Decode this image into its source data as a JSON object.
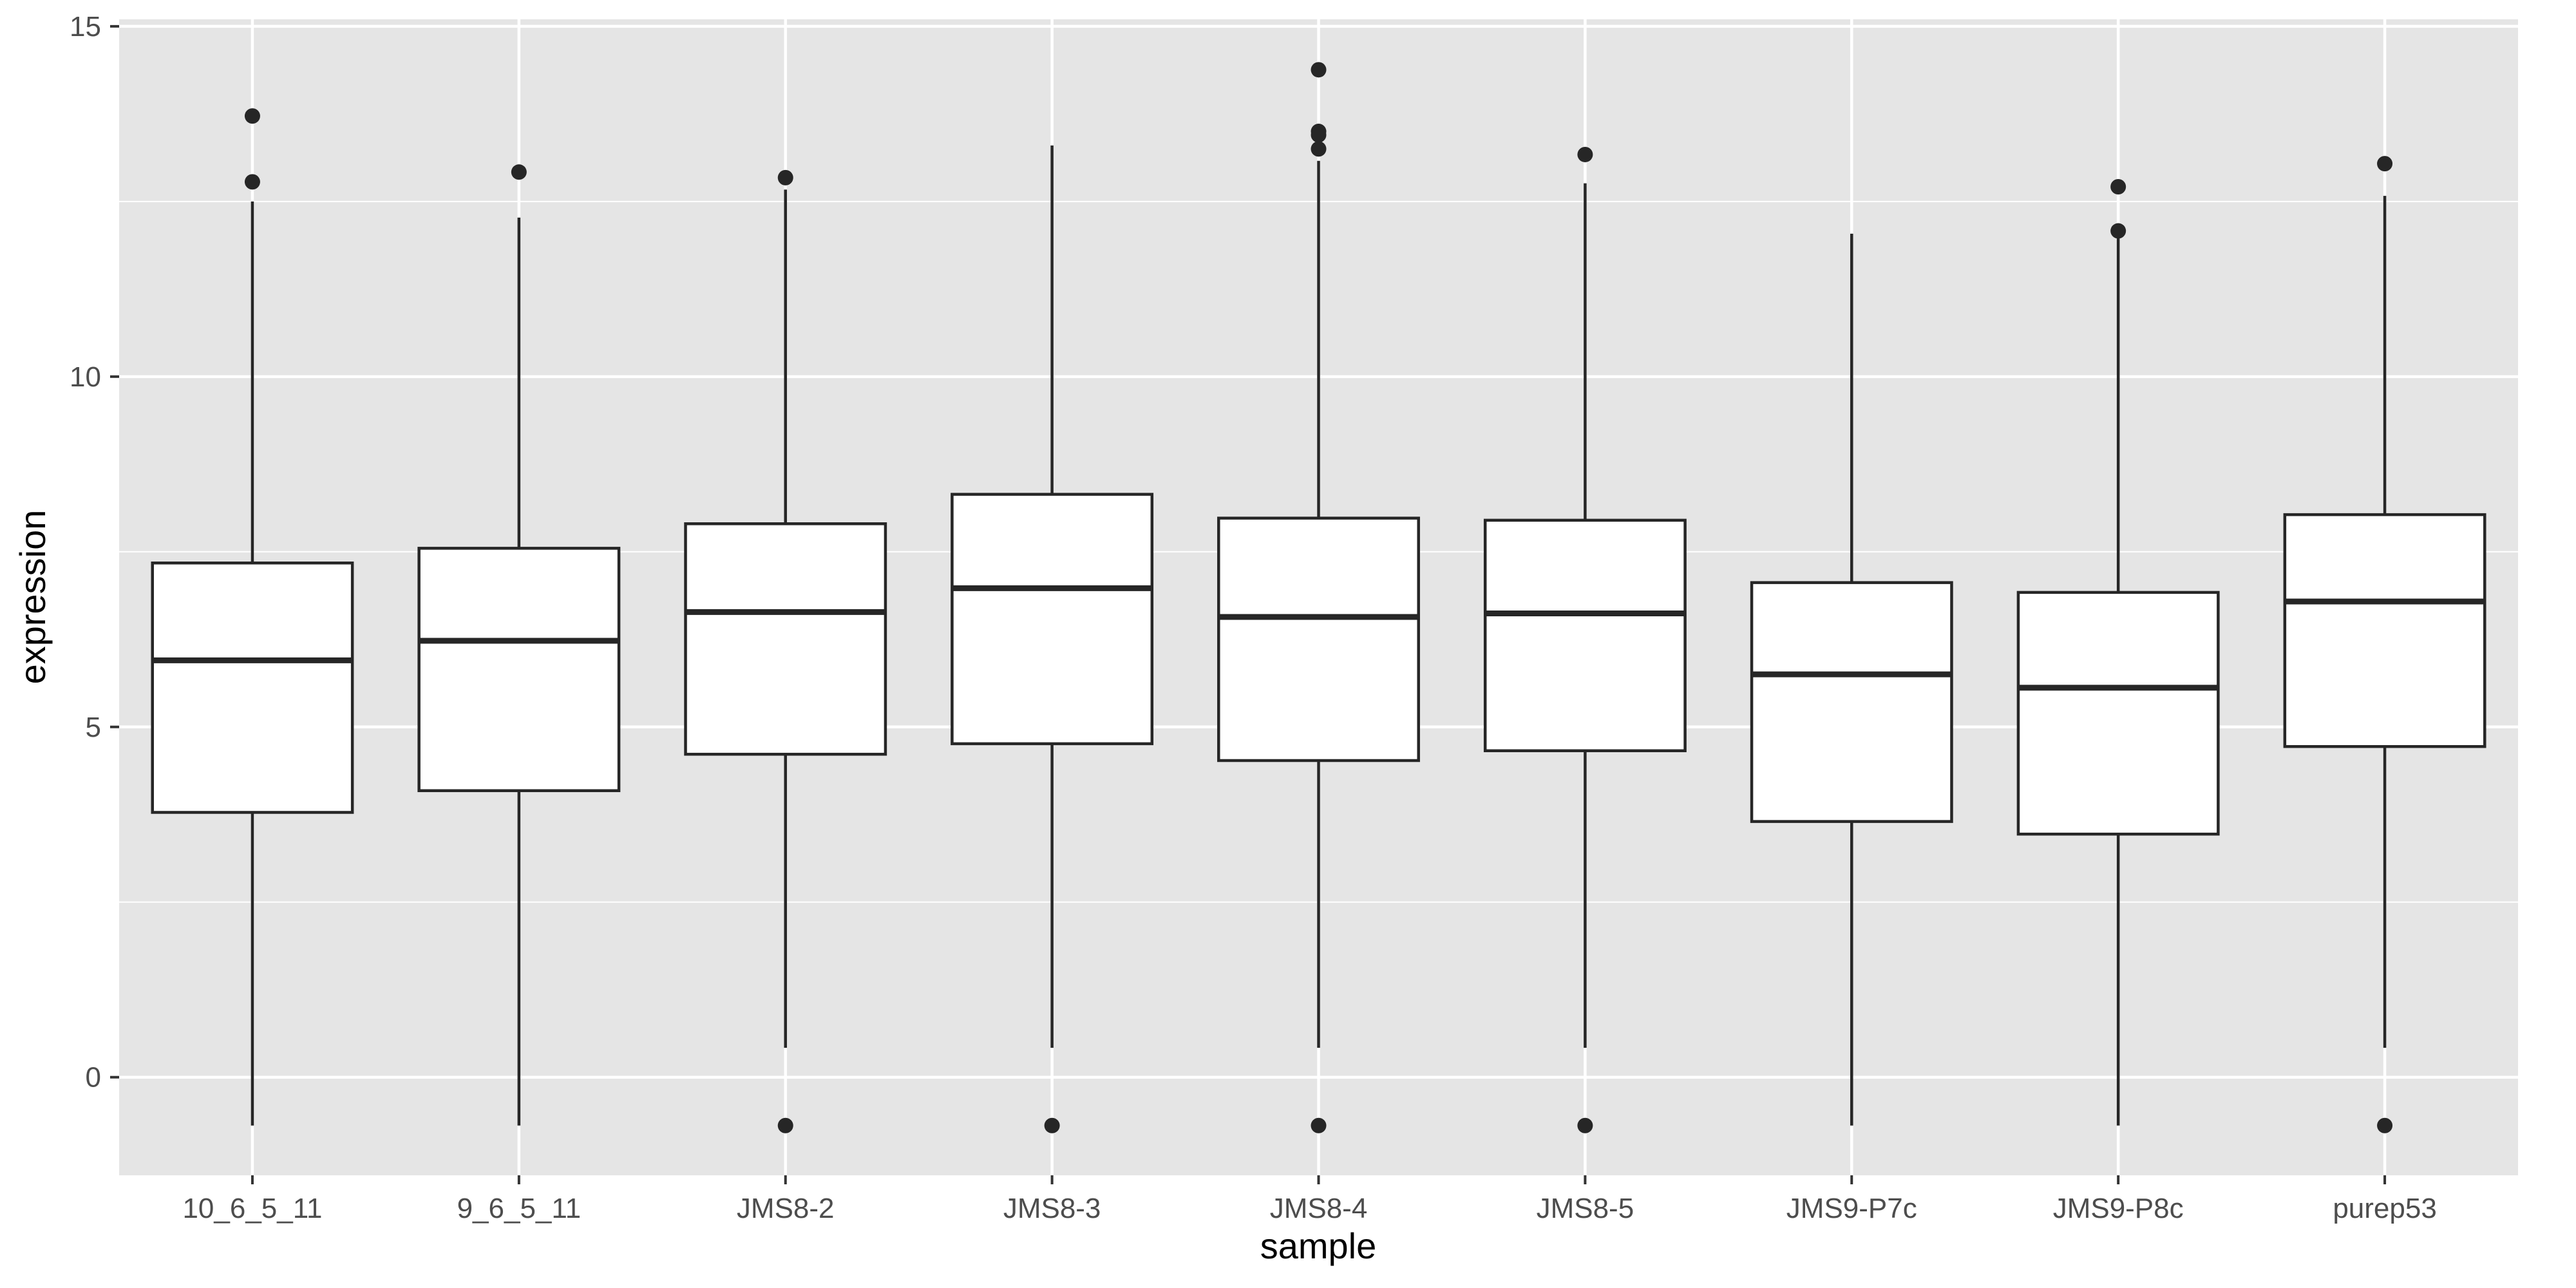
{
  "chart_data": {
    "type": "boxplot",
    "xlabel": "sample",
    "ylabel": "expression",
    "ylim": [
      -1.4,
      15.1
    ],
    "yticks": [
      0,
      5,
      10,
      15
    ],
    "y_minor_ticks": [
      2.5,
      7.5,
      12.5
    ],
    "grid": true,
    "colors": {
      "panel": "#e5e5e5",
      "grid": "#ffffff",
      "box_fill": "#ffffff",
      "stroke": "#262626",
      "tick_text": "#4d4d4d"
    },
    "categories": [
      "10_6_5_11",
      "9_6_5_11",
      "JMS8-2",
      "JMS8-3",
      "JMS8-4",
      "JMS8-5",
      "JMS9-P7c",
      "JMS9-P8c",
      "purep53"
    ],
    "boxes": [
      {
        "category": "10_6_5_11",
        "whisker_low": -0.69,
        "q1": 3.78,
        "median": 5.95,
        "q3": 7.34,
        "whisker_high": 12.5,
        "outliers": [
          13.72,
          12.78
        ]
      },
      {
        "category": "9_6_5_11",
        "whisker_low": -0.69,
        "q1": 4.09,
        "median": 6.23,
        "q3": 7.55,
        "whisker_high": 12.27,
        "outliers": [
          12.92
        ]
      },
      {
        "category": "JMS8-2",
        "whisker_low": 0.42,
        "q1": 4.61,
        "median": 6.64,
        "q3": 7.9,
        "whisker_high": 12.67,
        "outliers": [
          12.84,
          -0.69
        ]
      },
      {
        "category": "JMS8-3",
        "whisker_low": 0.42,
        "q1": 4.76,
        "median": 6.98,
        "q3": 8.32,
        "whisker_high": 13.3,
        "outliers": [
          -0.69
        ]
      },
      {
        "category": "JMS8-4",
        "whisker_low": 0.42,
        "q1": 4.52,
        "median": 6.57,
        "q3": 7.98,
        "whisker_high": 13.08,
        "outliers": [
          14.38,
          13.5,
          13.45,
          13.25,
          -0.69
        ]
      },
      {
        "category": "JMS8-5",
        "whisker_low": 0.42,
        "q1": 4.66,
        "median": 6.62,
        "q3": 7.95,
        "whisker_high": 12.76,
        "outliers": [
          13.17,
          -0.69
        ]
      },
      {
        "category": "JMS9-P7c",
        "whisker_low": -0.69,
        "q1": 3.65,
        "median": 5.75,
        "q3": 7.06,
        "whisker_high": 12.04,
        "outliers": []
      },
      {
        "category": "JMS9-P8c",
        "whisker_low": -0.69,
        "q1": 3.47,
        "median": 5.56,
        "q3": 6.92,
        "whisker_high": 11.99,
        "outliers": [
          12.71,
          12.08
        ]
      },
      {
        "category": "purep53",
        "whisker_low": 0.42,
        "q1": 4.72,
        "median": 6.79,
        "q3": 8.03,
        "whisker_high": 12.58,
        "outliers": [
          13.04,
          -0.69
        ]
      }
    ]
  }
}
